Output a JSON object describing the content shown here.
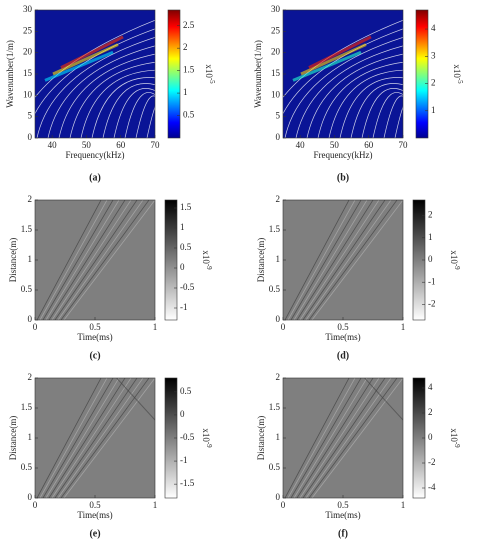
{
  "chart_data": [
    {
      "type": "heatmap",
      "panel": "(a)",
      "xlabel": "Frequency(kHz)",
      "ylabel": "Wavenumber(1/m)",
      "xlim": [
        35,
        70
      ],
      "xticks": [
        40,
        50,
        60,
        70
      ],
      "ylim": [
        0,
        30
      ],
      "yticks": [
        0,
        5,
        10,
        15,
        20,
        25,
        30
      ],
      "colormap": "jet",
      "colorbar": {
        "lim": [
          0,
          2.85
        ],
        "ticks": [
          0.5,
          1,
          1.5,
          2,
          2.5
        ],
        "label": "x10",
        "exponent": "-5"
      }
    },
    {
      "type": "heatmap",
      "panel": "(b)",
      "xlabel": "Frequency(kHz)",
      "ylabel": "Wavenumber(1/m)",
      "xlim": [
        35,
        70
      ],
      "xticks": [
        40,
        50,
        60,
        70
      ],
      "ylim": [
        0,
        30
      ],
      "yticks": [
        0,
        5,
        10,
        15,
        20,
        25,
        30
      ],
      "colormap": "jet",
      "colorbar": {
        "lim": [
          0,
          4.7
        ],
        "ticks": [
          1,
          2,
          3,
          4
        ],
        "label": "x10",
        "exponent": "-5"
      }
    },
    {
      "type": "heatmap",
      "panel": "(c)",
      "xlabel": "Time(ms)",
      "ylabel": "Distance(m)",
      "xlim": [
        0,
        1
      ],
      "xticks": [
        0,
        0.5,
        1
      ],
      "ylim": [
        0,
        2
      ],
      "yticks": [
        0,
        0.5,
        1,
        1.5,
        2
      ],
      "colormap": "gray",
      "colorbar": {
        "lim": [
          -1.3,
          1.7
        ],
        "ticks": [
          1.5,
          1,
          0.5,
          0,
          -0.5,
          -1
        ],
        "label": "x10",
        "exponent": "-9"
      }
    },
    {
      "type": "heatmap",
      "panel": "(d)",
      "xlabel": "Time(ms)",
      "ylabel": "Distance(m)",
      "xlim": [
        0,
        1
      ],
      "xticks": [
        0,
        0.5,
        1
      ],
      "ylim": [
        0,
        2
      ],
      "yticks": [
        0,
        0.5,
        1,
        1.5,
        2
      ],
      "colormap": "gray",
      "colorbar": {
        "lim": [
          -2.7,
          2.7
        ],
        "ticks": [
          2,
          1,
          0,
          -1,
          -2
        ],
        "label": "x10",
        "exponent": "-9"
      }
    },
    {
      "type": "heatmap",
      "panel": "(e)",
      "xlabel": "Time(ms)",
      "ylabel": "Distance(m)",
      "xlim": [
        0,
        1
      ],
      "xticks": [
        0,
        0.5,
        1
      ],
      "ylim": [
        0,
        2
      ],
      "yticks": [
        0,
        0.5,
        1,
        1.5,
        2
      ],
      "colormap": "gray",
      "colorbar": {
        "lim": [
          -1.8,
          0.8
        ],
        "ticks": [
          0.5,
          0,
          -0.5,
          -1,
          -1.5
        ],
        "label": "x10",
        "exponent": "-9"
      }
    },
    {
      "type": "heatmap",
      "panel": "(f)",
      "xlabel": "Time(ms)",
      "ylabel": "Distance(m)",
      "xlim": [
        0,
        1
      ],
      "xticks": [
        0,
        0.5,
        1
      ],
      "ylim": [
        0,
        2
      ],
      "yticks": [
        0,
        0.5,
        1,
        1.5,
        2
      ],
      "colormap": "gray",
      "colorbar": {
        "lim": [
          -4.8,
          4.8
        ],
        "ticks": [
          4,
          2,
          0,
          -2,
          -4
        ],
        "label": "x10",
        "exponent": "-9"
      }
    }
  ]
}
